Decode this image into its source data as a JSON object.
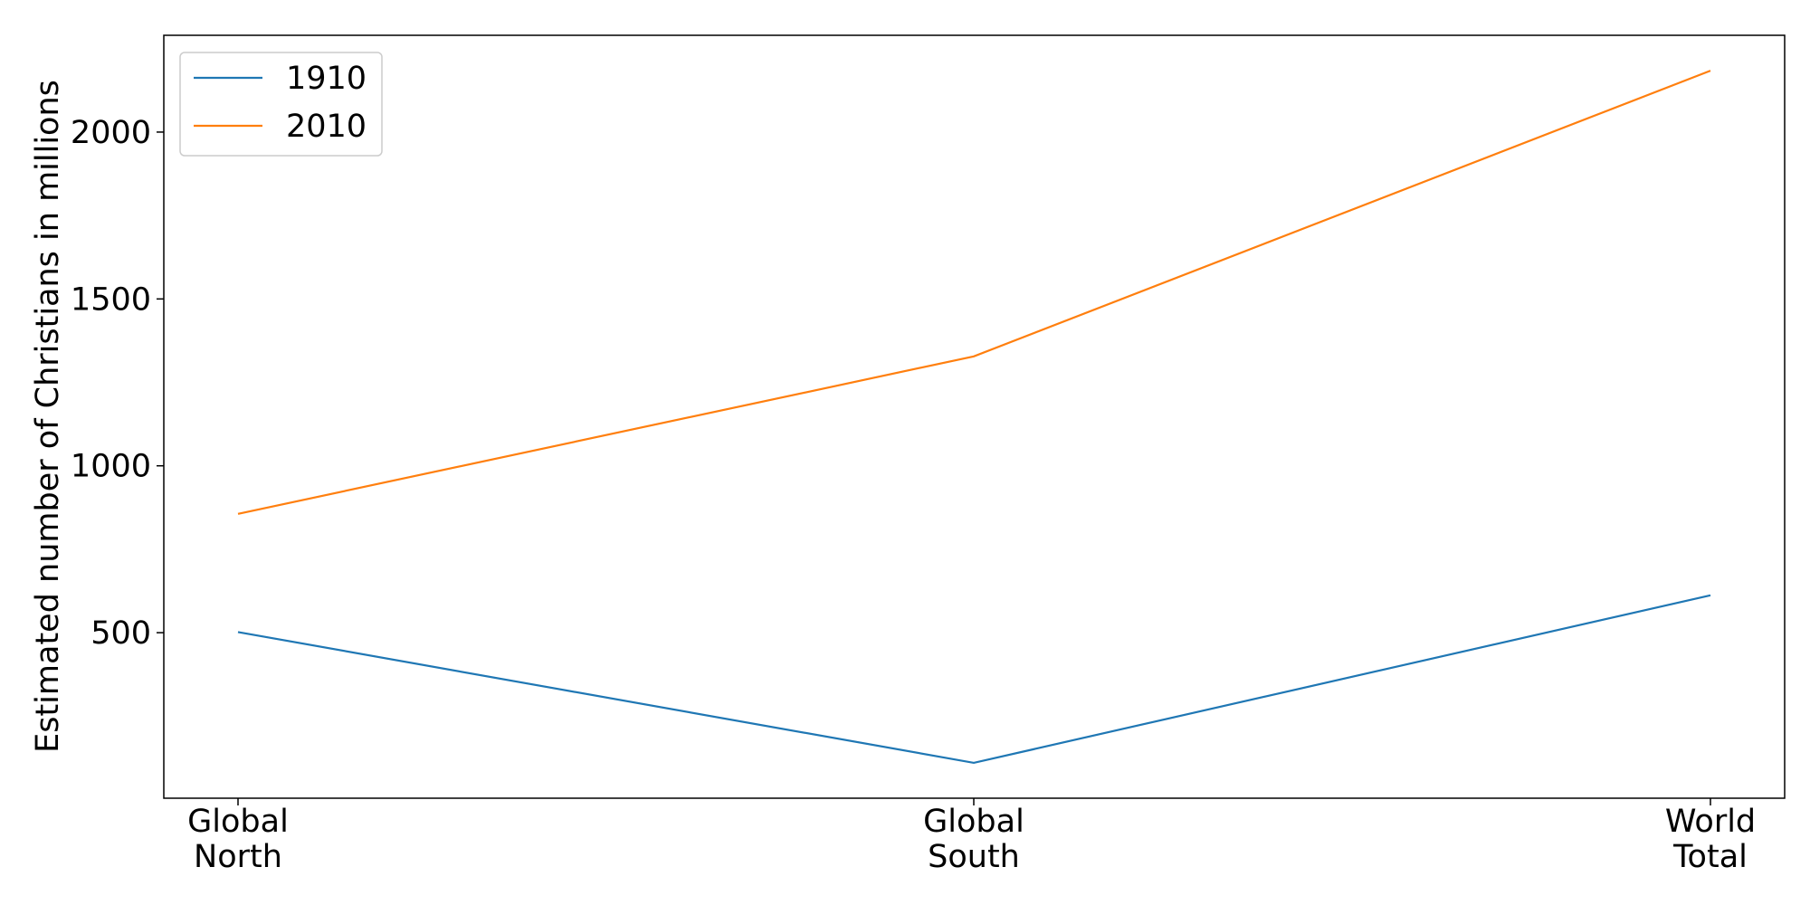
{
  "chart_data": {
    "type": "line",
    "categories": [
      [
        "Global",
        "North"
      ],
      [
        "Global",
        "South"
      ],
      [
        "World",
        "Total"
      ]
    ],
    "series": [
      {
        "name": "1910",
        "values": [
          502,
          110,
          612
        ],
        "color": "#1f77b4"
      },
      {
        "name": "2010",
        "values": [
          856,
          1328,
          2184
        ],
        "color": "#ff7f0e"
      }
    ],
    "ylabel": "Estimated number of Christians in millions",
    "xlabel": "",
    "ylim": [
      4,
      2290
    ],
    "yticks": [
      500,
      1000,
      1500,
      2000
    ],
    "grid": false,
    "legend_position": "top-left"
  }
}
